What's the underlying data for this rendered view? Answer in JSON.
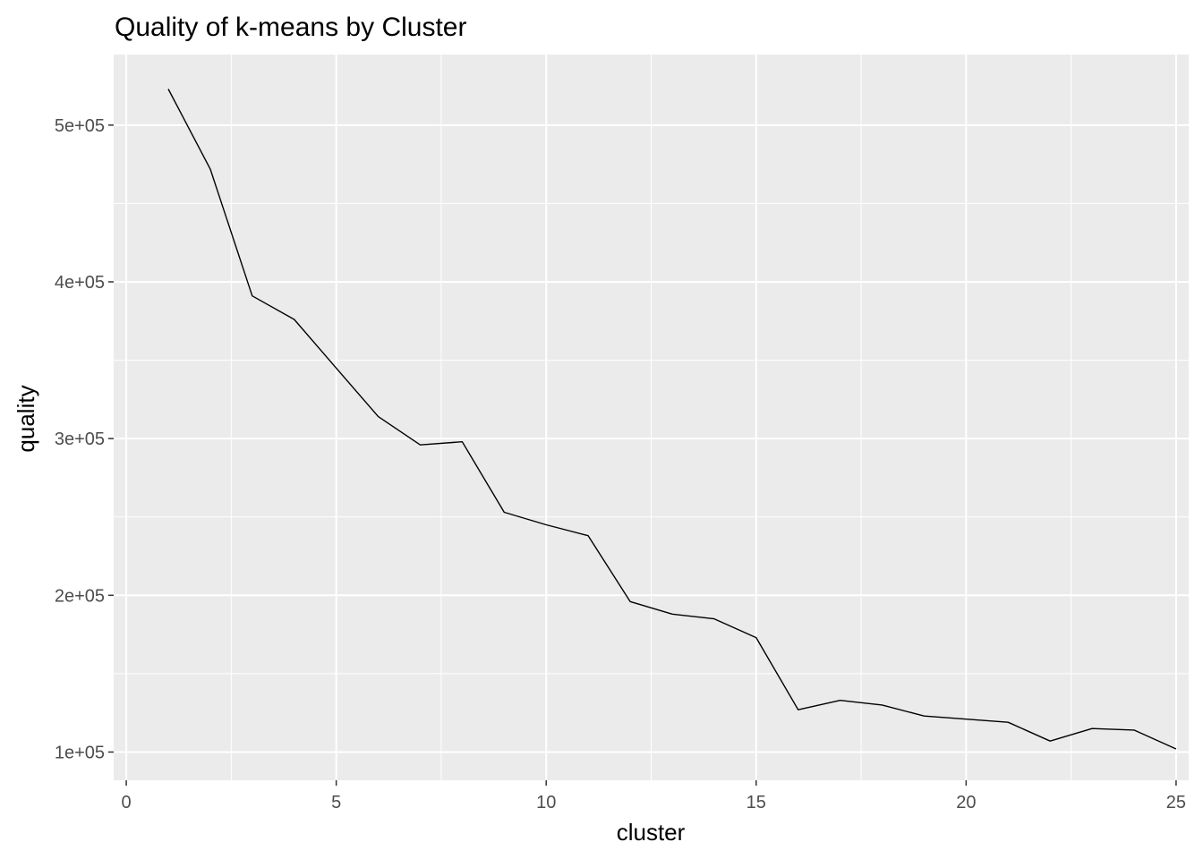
{
  "chart_data": {
    "type": "line",
    "title": "Quality of k-means by Cluster",
    "xlabel": "cluster",
    "ylabel": "quality",
    "xlim": [
      -0.3,
      25.3
    ],
    "ylim": [
      82000,
      545000
    ],
    "x_ticks": [
      0,
      5,
      10,
      15,
      20,
      25
    ],
    "x_tick_labels": [
      "0",
      "5",
      "10",
      "15",
      "20",
      "25"
    ],
    "y_ticks": [
      100000,
      200000,
      300000,
      400000,
      500000
    ],
    "y_tick_labels": [
      "1e+05",
      "2e+05",
      "3e+05",
      "4e+05",
      "5e+05"
    ],
    "grid": true,
    "background": "#ebebeb",
    "grid_color": "#ffffff",
    "line_color": "#000000",
    "series": [
      {
        "x": [
          1,
          2,
          3,
          4,
          5,
          6,
          7,
          8,
          9,
          10,
          11,
          12,
          13,
          14,
          15,
          16,
          17,
          18,
          19,
          20,
          21,
          22,
          23,
          24,
          25
        ],
        "values": [
          523000,
          472000,
          391000,
          376000,
          345000,
          314000,
          296000,
          298000,
          253000,
          245000,
          238000,
          196000,
          188000,
          185000,
          173000,
          127000,
          133000,
          130000,
          123000,
          121000,
          119000,
          107000,
          115000,
          114000,
          102000
        ]
      }
    ]
  }
}
